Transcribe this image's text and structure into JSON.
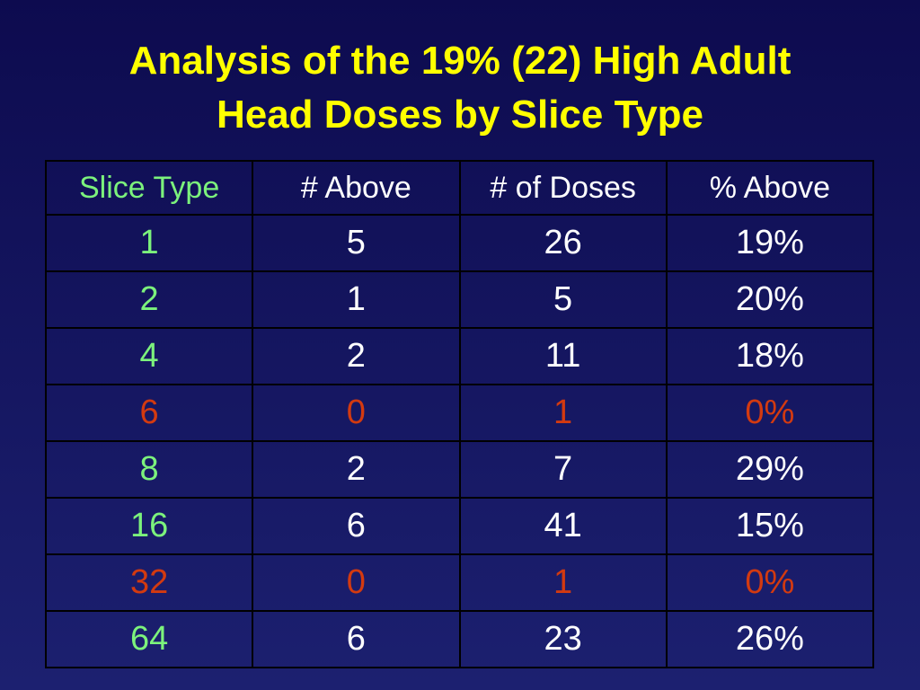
{
  "title": {
    "line1": "Analysis of the 19% (22) High Adult",
    "line2": "Head Doses by Slice Type"
  },
  "table": {
    "headers": [
      "Slice Type",
      "# Above",
      "# of Doses",
      "% Above"
    ],
    "rows": [
      {
        "slice_type": "1",
        "above": "5",
        "doses": "26",
        "pct": "19%",
        "highlight": false
      },
      {
        "slice_type": "2",
        "above": "1",
        "doses": "5",
        "pct": "20%",
        "highlight": false
      },
      {
        "slice_type": "4",
        "above": "2",
        "doses": "11",
        "pct": "18%",
        "highlight": false
      },
      {
        "slice_type": "6",
        "above": "0",
        "doses": "1",
        "pct": "0%",
        "highlight": true
      },
      {
        "slice_type": "8",
        "above": "2",
        "doses": "7",
        "pct": "29%",
        "highlight": false
      },
      {
        "slice_type": "16",
        "above": "6",
        "doses": "41",
        "pct": "15%",
        "highlight": false
      },
      {
        "slice_type": "32",
        "above": "0",
        "doses": "1",
        "pct": "0%",
        "highlight": true
      },
      {
        "slice_type": "64",
        "above": "6",
        "doses": "23",
        "pct": "26%",
        "highlight": false
      }
    ]
  },
  "colors": {
    "title": "#ffff00",
    "slice_type_text": "#7cf27c",
    "normal_text": "#ffffff",
    "highlight_text": "#d33a10",
    "background": "#15166a"
  }
}
